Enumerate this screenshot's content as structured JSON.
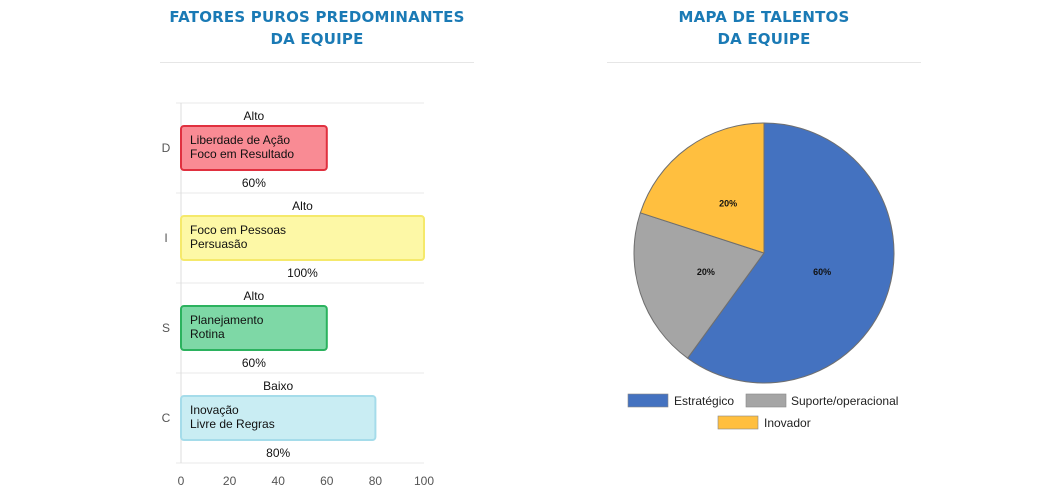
{
  "left_panel": {
    "title_line1": "FATORES PUROS PREDOMINANTES",
    "title_line2": "DA EQUIPE"
  },
  "right_panel": {
    "title_line1": "MAPA DE TALENTOS",
    "title_line2": "DA EQUIPE"
  },
  "chart_data": [
    {
      "type": "bar",
      "orientation": "horizontal",
      "categories": [
        "D",
        "I",
        "S",
        "C"
      ],
      "values": [
        60,
        100,
        60,
        80
      ],
      "value_labels": [
        "60%",
        "100%",
        "60%",
        "80%"
      ],
      "level_labels": [
        "Alto",
        "Alto",
        "Alto",
        "Baixo"
      ],
      "bar_text": [
        [
          "Liberdade de Ação",
          "Foco em Resultado"
        ],
        [
          "Foco em Pessoas",
          "Persuasão"
        ],
        [
          "Planejamento",
          "Rotina"
        ],
        [
          "Inovação",
          "Livre de Regras"
        ]
      ],
      "bar_fill": [
        "#f98b94",
        "#fdf8a6",
        "#7ed8a6",
        "#c9edf3"
      ],
      "bar_stroke": [
        "#e0303f",
        "#f5e96b",
        "#2bb25e",
        "#a5dcea"
      ],
      "xlim": [
        0,
        100
      ],
      "xticks": [
        0,
        20,
        40,
        60,
        80,
        100
      ],
      "grid": true
    },
    {
      "type": "pie",
      "labels": [
        "Estratégico",
        "Suporte/operacional",
        "Inovador"
      ],
      "values": [
        60,
        20,
        20
      ],
      "value_labels": [
        "60%",
        "20%",
        "20%"
      ],
      "colors": [
        "#4472c0",
        "#a5a5a5",
        "#ffbf3f"
      ],
      "legend_position": "bottom"
    }
  ]
}
